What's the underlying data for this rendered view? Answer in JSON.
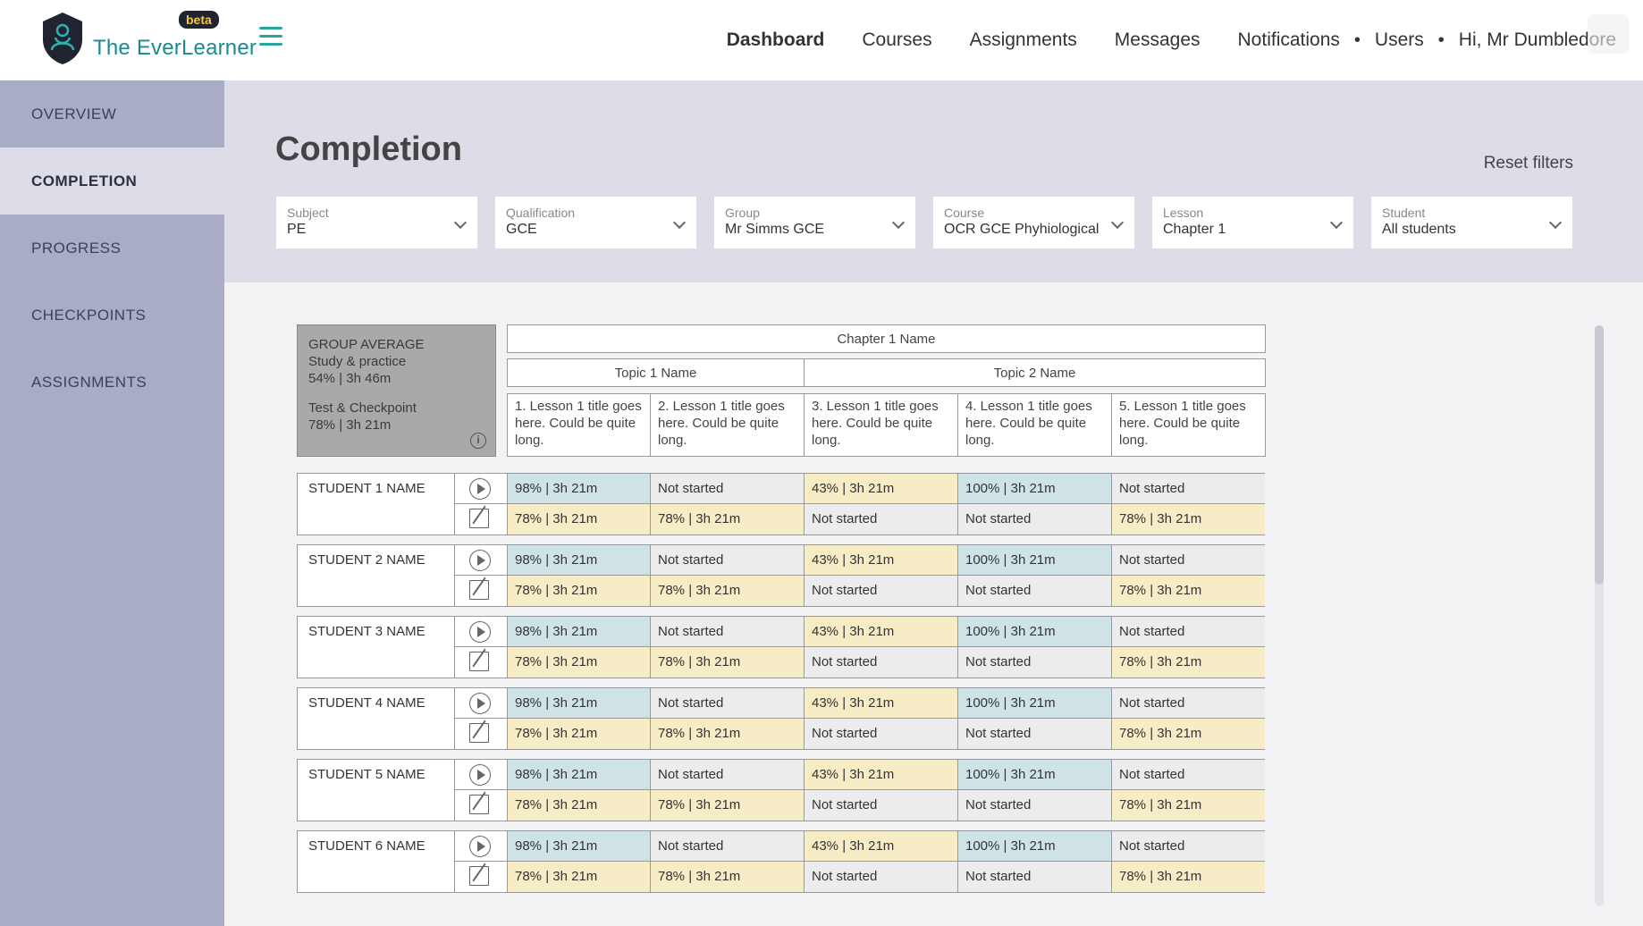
{
  "header": {
    "brand": "The EverLearner",
    "badge": "beta",
    "nav": [
      {
        "label": "Dashboard",
        "active": true
      },
      {
        "label": "Courses"
      },
      {
        "label": "Assignments"
      },
      {
        "label": "Messages"
      },
      {
        "label": "Notifications"
      },
      {
        "label": "Users"
      }
    ],
    "user": "Hi, Mr Dumbledore"
  },
  "sidebar": {
    "items": [
      {
        "label": "OVERVIEW"
      },
      {
        "label": "COMPLETION",
        "active": true
      },
      {
        "label": "PROGRESS"
      },
      {
        "label": "CHECKPOINTS"
      },
      {
        "label": "ASSIGNMENTS"
      }
    ]
  },
  "page": {
    "title": "Completion",
    "reset_label": "Reset filters"
  },
  "filters": [
    {
      "label": "Subject",
      "value": "PE"
    },
    {
      "label": "Qualification",
      "value": "GCE"
    },
    {
      "label": "Group",
      "value": "Mr Simms GCE"
    },
    {
      "label": "Course",
      "value": "OCR GCE Phyhiological"
    },
    {
      "label": "Lesson",
      "value": "Chapter 1"
    },
    {
      "label": "Student",
      "value": "All students"
    }
  ],
  "group_average": {
    "title": "GROUP AVERAGE",
    "study_label": "Study & practice",
    "study_value": "54% | 3h 46m",
    "test_label": "Test & Checkpoint",
    "test_value": "78% | 3h 21m"
  },
  "table": {
    "chapter": "Chapter 1 Name",
    "topics": [
      "Topic 1 Name",
      "Topic 2 Name"
    ],
    "lessons": [
      "1. Lesson 1 title goes here. Could be quite long.",
      "2. Lesson 1 title goes here. Could be quite long.",
      "3. Lesson 1 title goes here. Could be quite long.",
      "4. Lesson 1 title goes here. Could be quite long.",
      "5. Lesson 1 title goes here. Could be quite long."
    ],
    "students": [
      {
        "name": "STUDENT 1 NAME"
      },
      {
        "name": "STUDENT 2 NAME"
      },
      {
        "name": "STUDENT 3 NAME"
      },
      {
        "name": "STUDENT 4 NAME"
      },
      {
        "name": "STUDENT 5 NAME"
      },
      {
        "name": "STUDENT 6 NAME"
      }
    ],
    "row_study": [
      {
        "text": "98% | 3h 21m",
        "color": "blue"
      },
      {
        "text": "Not started",
        "color": "grey"
      },
      {
        "text": "43% | 3h 21m",
        "color": "yellow"
      },
      {
        "text": "100% | 3h 21m",
        "color": "blue"
      },
      {
        "text": "Not started",
        "color": "grey"
      }
    ],
    "row_test": [
      {
        "text": "78% | 3h 21m",
        "color": "yellow"
      },
      {
        "text": "78% | 3h 21m",
        "color": "yellow"
      },
      {
        "text": "Not started",
        "color": "grey"
      },
      {
        "text": "Not started",
        "color": "grey"
      },
      {
        "text": "78% | 3h 21m",
        "color": "yellow"
      }
    ]
  }
}
